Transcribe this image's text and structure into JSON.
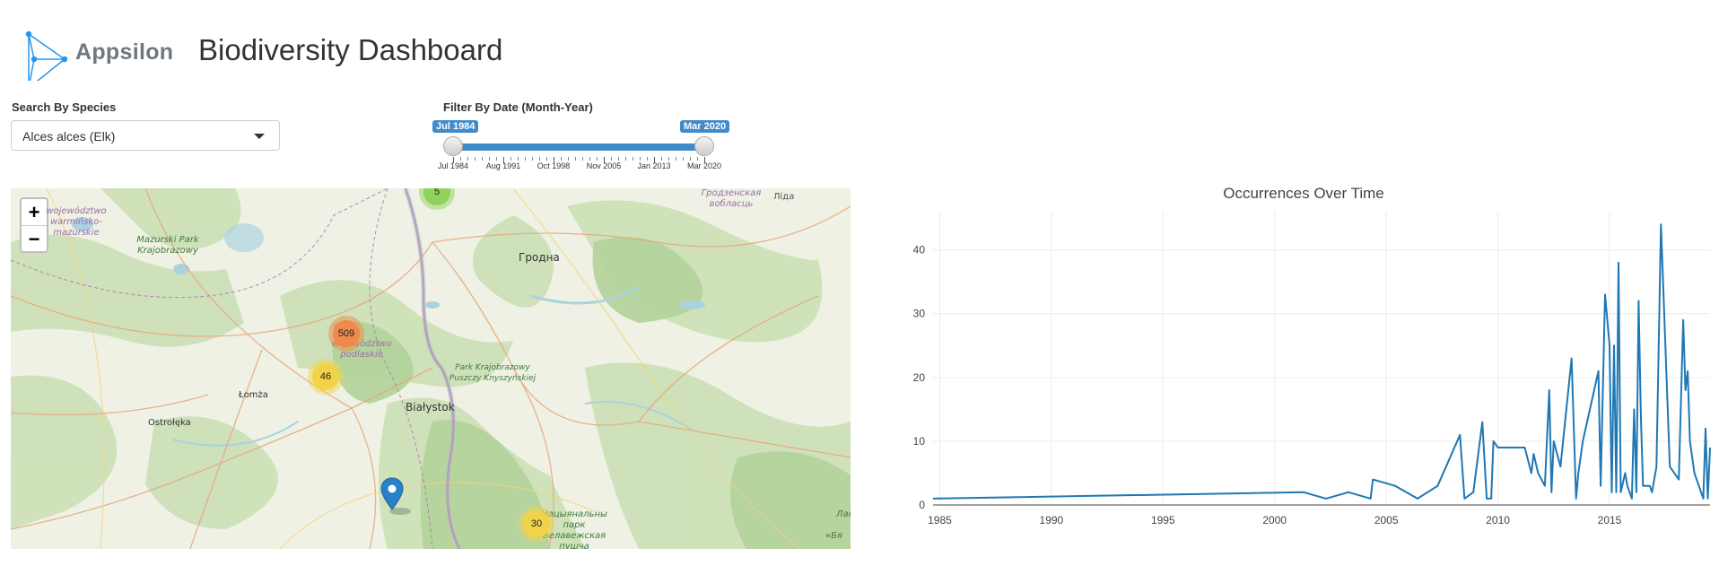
{
  "header": {
    "brand": "Appsilon",
    "title": "Biodiversity Dashboard"
  },
  "species_filter": {
    "label": "Search By Species",
    "selected": "Alces alces (Elk)"
  },
  "date_filter": {
    "label": "Filter By Date (Month-Year)",
    "from": "Jul 1984",
    "to": "Mar 2020",
    "ticks": [
      "Jul 1984",
      "Aug 1991",
      "Oct 1998",
      "Nov 2005",
      "Jan 2013",
      "Mar 2020"
    ]
  },
  "map": {
    "zoom_in": "+",
    "zoom_out": "−",
    "clusters": [
      {
        "count": "5",
        "color": "#8fd35e"
      },
      {
        "count": "509",
        "color": "#f08a4b"
      },
      {
        "count": "46",
        "color": "#f1d34a"
      },
      {
        "count": "30",
        "color": "#f1d34a"
      }
    ],
    "place_labels": [
      "województwo warmińsko-mazurskie",
      "Mazurski Park Krajobrazowy",
      "Гродна",
      "Гродзенская вобласць",
      "Ліда",
      "województwo podlaskie",
      "Park Krajobrazowy Puszczy Knyszyńskiej",
      "Łomża",
      "Ostrołęka",
      "Białystok",
      "Нацыянальны парк Белавежская пушча",
      "Лан",
      "«Бя"
    ]
  },
  "chart_data": {
    "type": "line",
    "title": "Occurrences Over Time",
    "xlabel": "",
    "ylabel": "",
    "xlim": [
      1984.7,
      2019.5
    ],
    "ylim": [
      0,
      46
    ],
    "xticks": [
      1985,
      1990,
      1995,
      2000,
      2005,
      2010,
      2015
    ],
    "yticks": [
      0,
      10,
      20,
      30,
      40
    ],
    "grid": true,
    "color": "#1f77b4",
    "x": [
      1984.7,
      2001.3,
      2002.3,
      2003.3,
      2004.3,
      2004.4,
      2005.4,
      2006.4,
      2007.3,
      2008.3,
      2008.5,
      2008.9,
      2009.3,
      2009.5,
      2009.7,
      2009.8,
      2010.0,
      2010.3,
      2010.5,
      2011.2,
      2011.5,
      2011.6,
      2011.8,
      2012.1,
      2012.3,
      2012.4,
      2012.5,
      2012.8,
      2013.3,
      2013.5,
      2013.6,
      2013.8,
      2014.5,
      2014.6,
      2014.8,
      2015.0,
      2015.1,
      2015.2,
      2015.3,
      2015.4,
      2015.5,
      2015.7,
      2015.8,
      2016.0,
      2016.1,
      2016.2,
      2016.3,
      2016.4,
      2016.5,
      2016.8,
      2016.9,
      2017.0,
      2017.1,
      2017.3,
      2017.7,
      2018.1,
      2018.3,
      2018.4,
      2018.5,
      2018.6,
      2018.8,
      2019.0,
      2019.2,
      2019.3,
      2019.4,
      2019.5
    ],
    "y": [
      1,
      2,
      1,
      2,
      1,
      4,
      3,
      1,
      3,
      11,
      1,
      2,
      13,
      1,
      1,
      10,
      9,
      9,
      9,
      9,
      5,
      8,
      5,
      3,
      18,
      2,
      10,
      6,
      23,
      1,
      5,
      10,
      21,
      3,
      33,
      25,
      2,
      25,
      2,
      38,
      2,
      5,
      3,
      1,
      15,
      2,
      32,
      14,
      3,
      3,
      2,
      4,
      6,
      44,
      6,
      4,
      29,
      18,
      21,
      10,
      5,
      3,
      1,
      12,
      1,
      9
    ]
  }
}
